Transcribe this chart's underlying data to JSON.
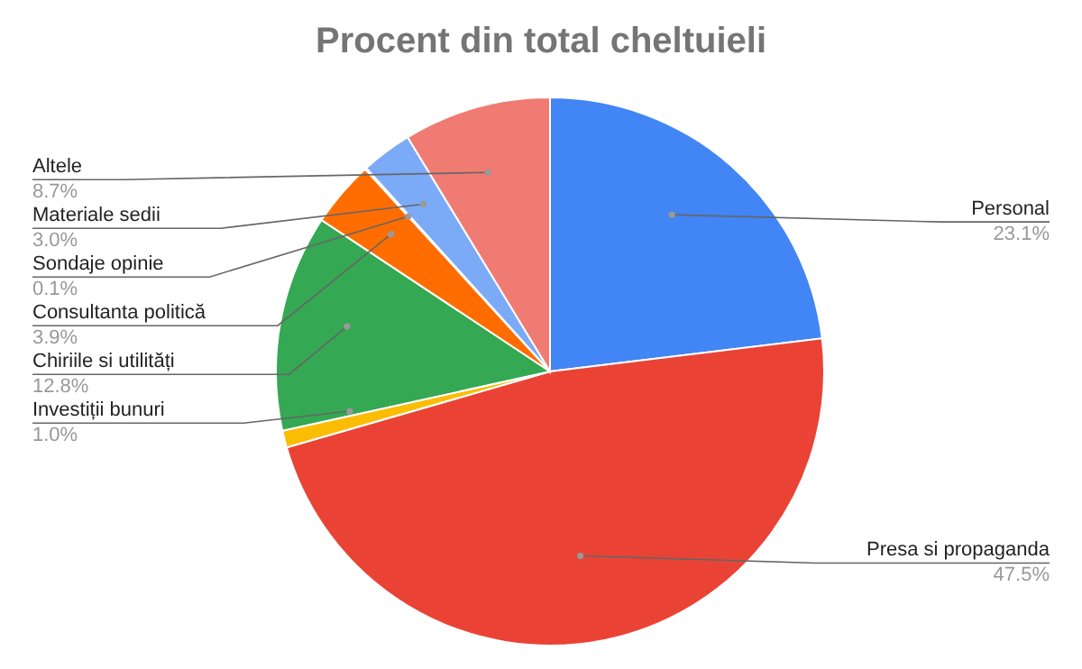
{
  "chart_data": {
    "type": "pie",
    "title": "Procent din total cheltuieli",
    "categories": [
      "Personal",
      "Presa si propaganda",
      "Investiții bunuri",
      "Chiriile si utilități",
      "Consultanta politică",
      "Sondaje opinie",
      "Materiale sedii",
      "Altele"
    ],
    "values": [
      23.1,
      47.5,
      1.0,
      12.8,
      3.9,
      0.1,
      3.0,
      8.7
    ],
    "value_labels": [
      "23.1%",
      "47.5%",
      "1.0%",
      "12.8%",
      "3.9%",
      "0.1%",
      "3.0%",
      "8.7%"
    ],
    "colors": [
      "#4285f4",
      "#ea4335",
      "#fbbc04",
      "#34a853",
      "#ff6d01",
      "#46bdc6",
      "#7baaf7",
      "#f07b72"
    ],
    "legend": false
  }
}
